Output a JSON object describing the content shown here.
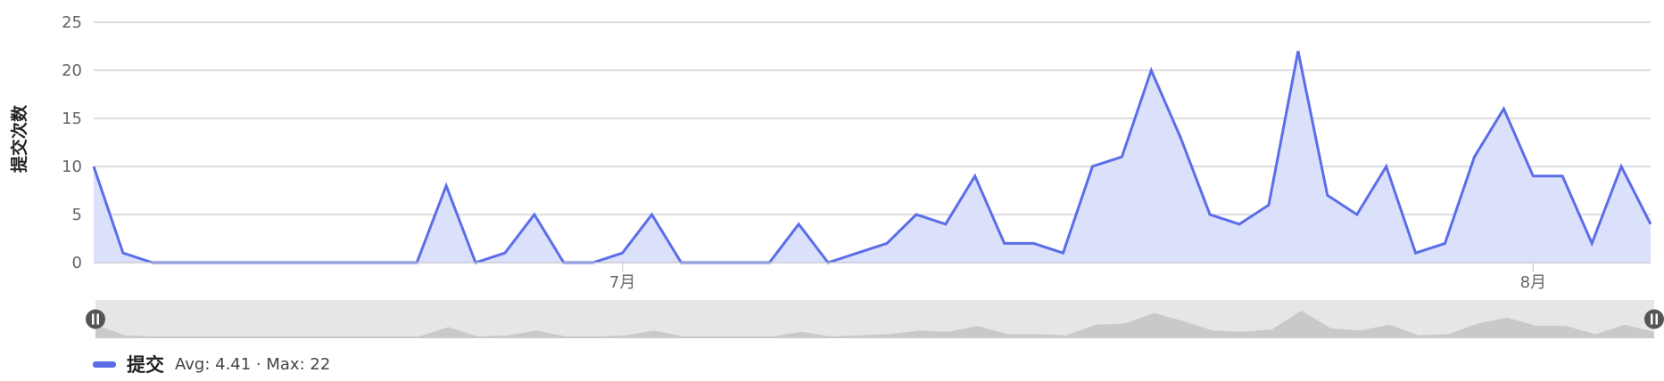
{
  "chart_data": {
    "type": "area",
    "ylabel": "提交次数",
    "xlabel": "",
    "ylim": [
      0,
      25
    ],
    "yticks": [
      "0",
      "5",
      "10",
      "15",
      "20",
      "25"
    ],
    "x_tick_labels": [
      {
        "label": "7月",
        "index": 18
      },
      {
        "label": "8月",
        "index": 49
      }
    ],
    "grid": true,
    "series": [
      {
        "name": "提交",
        "color": "#5b6ee8",
        "fill": "#dbe0fb",
        "values": [
          10,
          1,
          0,
          0,
          0,
          0,
          0,
          0,
          0,
          0,
          0,
          0,
          8,
          0,
          1,
          5,
          0,
          0,
          1,
          5,
          0,
          0,
          0,
          0,
          4,
          0,
          1,
          2,
          5,
          4,
          9,
          2,
          2,
          1,
          10,
          11,
          20,
          13,
          5,
          4,
          6,
          22,
          7,
          5,
          10,
          1,
          2,
          11,
          16,
          9,
          9,
          2,
          10,
          4
        ]
      }
    ],
    "legend": {
      "position": "bottom-left",
      "name": "提交",
      "stats": "Avg: 4.41 · Max: 22"
    },
    "navigator": true
  }
}
